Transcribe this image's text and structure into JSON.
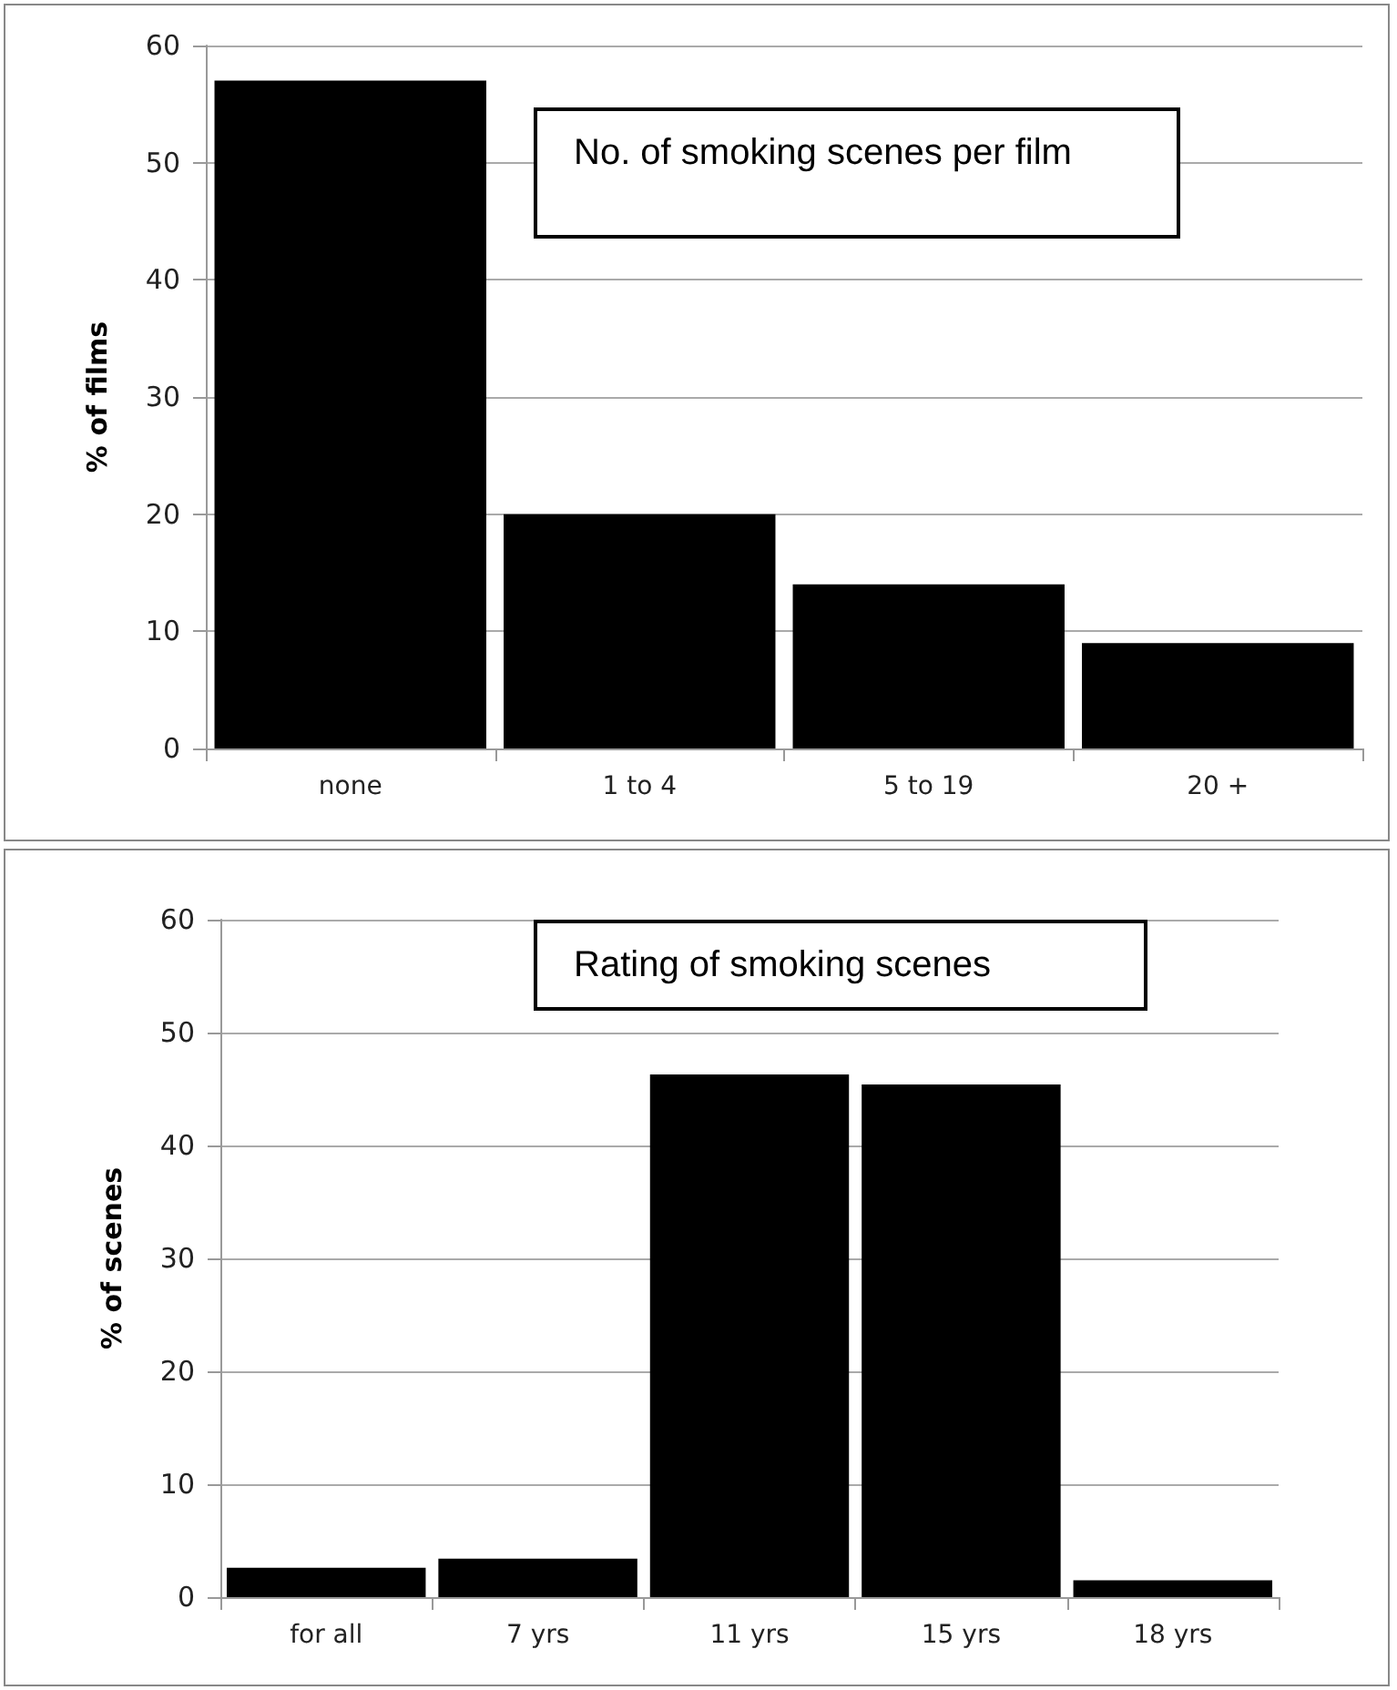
{
  "chart_data": [
    {
      "type": "bar",
      "title": "No. of smoking scenes per film",
      "ylabel": "% of films",
      "categories": [
        "none",
        "1 to 4",
        "5 to 19",
        "20 +"
      ],
      "values": [
        57,
        20,
        14,
        9
      ],
      "color": "#000000",
      "ylim": [
        0,
        60
      ],
      "yticks": [
        0,
        10,
        20,
        30,
        40,
        50,
        60
      ],
      "grid": "y"
    },
    {
      "type": "bar",
      "title": "Rating of smoking scenes",
      "ylabel": "% of scenes",
      "categories": [
        "for all",
        "7 yrs",
        "11 yrs",
        "15 yrs",
        "18 yrs"
      ],
      "values": [
        2.6,
        3.4,
        46.3,
        45.4,
        1.5
      ],
      "color": "#000000",
      "ylim": [
        0,
        60
      ],
      "yticks": [
        0,
        10,
        20,
        30,
        40,
        50,
        60
      ],
      "grid": "y"
    }
  ]
}
